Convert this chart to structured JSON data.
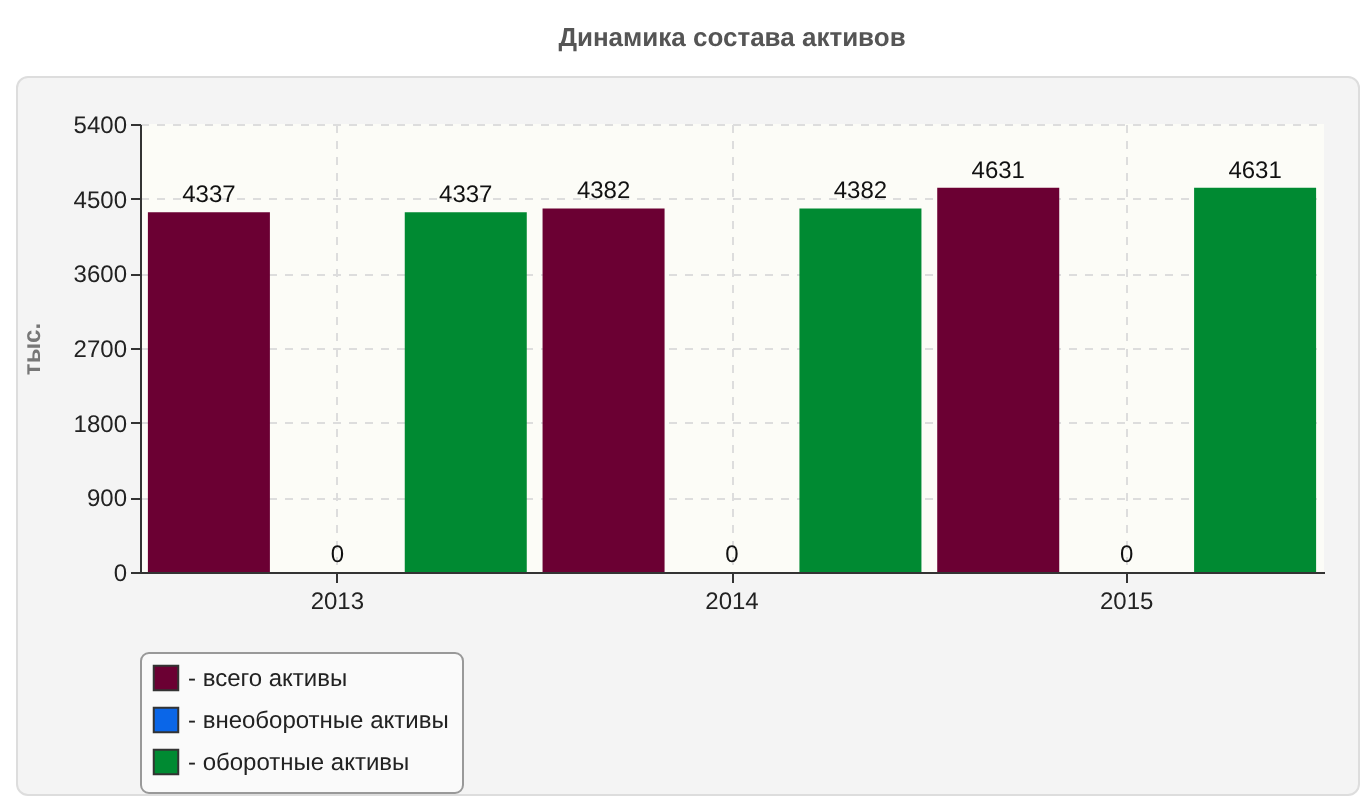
{
  "chart_data": {
    "type": "bar",
    "title": "Динамика состава активов",
    "ylabel": "тыс.",
    "categories": [
      "2013",
      "2014",
      "2015"
    ],
    "series": [
      {
        "name": "- всего активы",
        "color": "#6b0033",
        "values": [
          4337,
          4382,
          4631
        ]
      },
      {
        "name": "- внеоборотные активы",
        "color": "#0a66e8",
        "values": [
          0,
          0,
          0
        ]
      },
      {
        "name": "- оборотные активы",
        "color": "#008a32",
        "values": [
          4337,
          4382,
          4631
        ]
      }
    ],
    "ylim": [
      0,
      5400
    ],
    "yticks": [
      0,
      900,
      1800,
      2700,
      3600,
      4500,
      5400
    ],
    "grid": true,
    "legend": "bottom",
    "data_labels": true
  }
}
